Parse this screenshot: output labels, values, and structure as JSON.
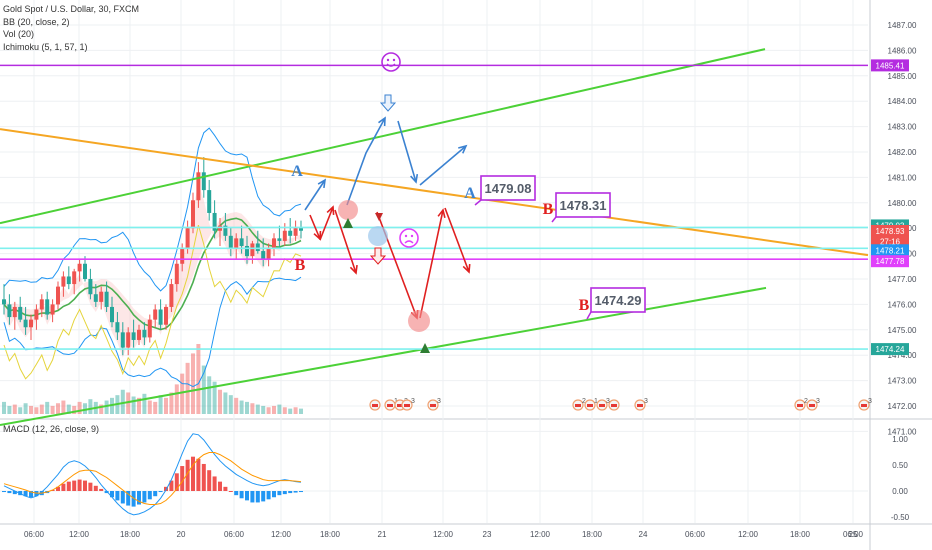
{
  "legend": {
    "symbol": "Gold Spot / U.S. Dollar, 30, FXCM",
    "bb": "BB (20, close, 2)",
    "vol": "Vol (20)",
    "ichimoku": "Ichimoku (5, 1, 57, 1)",
    "macd": "MACD (12, 26, close, 9)"
  },
  "colors": {
    "up": "#ef5350",
    "down": "#26a69a",
    "bb": "#2196f3",
    "ichimoku_base": "#4caf50",
    "ichimoku_lag": "#e5d43b",
    "trend_green": "#4cd137",
    "trend_orange": "#f5a623",
    "magenta": "#e040fb",
    "cyan": "#7ff0ee",
    "purple": "#b42ce0",
    "scenario_up": "#3b82d1",
    "scenario_down": "#e02020"
  },
  "chart_data": {
    "type": "line",
    "title": "Gold Spot / U.S. Dollar, 30, FXCM",
    "price_axis": {
      "ticks": [
        "1487.00",
        "1486.00",
        "1485.00",
        "1484.00",
        "1483.00",
        "1482.00",
        "1481.00",
        "1480.00",
        "1479.00",
        "1478.00",
        "1477.00",
        "1476.00",
        "1475.00",
        "1474.00",
        "1473.00",
        "1472.00",
        "1471.00"
      ]
    },
    "macd_axis": {
      "ticks": [
        "1.00",
        "0.50",
        "0.00",
        "-0.50"
      ]
    },
    "time_axis": {
      "ticks": [
        "06:00",
        "12:00",
        "18:00",
        "20",
        "06:00",
        "12:00",
        "18:00",
        "21",
        "12:00",
        "23",
        "12:00",
        "18:00",
        "24",
        "06:00",
        "12:00",
        "18:00",
        "25",
        "06:00"
      ]
    },
    "price_badges": [
      {
        "label": "1485.41",
        "value": 1485.41,
        "color": "#b42ce0"
      },
      {
        "label": "1479.03",
        "value": 1479.03,
        "color": "#26a69a"
      },
      {
        "label": "1478.93",
        "value": 1478.93,
        "color": "#ef5350"
      },
      {
        "label": "27:16",
        "value": 1478.6,
        "color": "#ef5350"
      },
      {
        "label": "1478.21",
        "value": 1478.21,
        "color": "#2196f3"
      },
      {
        "label": "1477.78",
        "value": 1477.78,
        "color": "#e040fb"
      },
      {
        "label": "1474.24",
        "value": 1474.24,
        "color": "#26a69a"
      }
    ],
    "horizontal_levels": [
      {
        "value": 1485.41,
        "color": "#b42ce0"
      },
      {
        "value": 1479.03,
        "color": "#7ff0ee"
      },
      {
        "value": 1478.21,
        "color": "#7ff0ee"
      },
      {
        "value": 1477.78,
        "color": "#e040fb"
      },
      {
        "value": 1474.24,
        "color": "#7ff0ee"
      }
    ],
    "callouts": [
      {
        "text": "1479.08",
        "value": 1479.08
      },
      {
        "text": "1478.31",
        "value": 1478.31
      },
      {
        "text": "1474.29",
        "value": 1474.29
      }
    ],
    "scenario_letters": [
      {
        "text": "A",
        "color": "#3b82d1"
      },
      {
        "text": "A",
        "color": "#3b82d1"
      },
      {
        "text": "B",
        "color": "#e02020"
      },
      {
        "text": "B",
        "color": "#e02020"
      },
      {
        "text": "B",
        "color": "#e02020"
      }
    ],
    "candles": [
      [
        1476.2,
        1476.8,
        1475.6,
        1476.0
      ],
      [
        1476.0,
        1476.4,
        1475.2,
        1475.5
      ],
      [
        1475.5,
        1476.1,
        1475.0,
        1475.9
      ],
      [
        1475.9,
        1476.3,
        1475.3,
        1475.4
      ],
      [
        1475.4,
        1475.9,
        1474.8,
        1475.1
      ],
      [
        1475.1,
        1475.6,
        1474.6,
        1475.4
      ],
      [
        1475.4,
        1476.0,
        1475.0,
        1475.8
      ],
      [
        1475.8,
        1476.4,
        1475.5,
        1476.2
      ],
      [
        1476.2,
        1476.5,
        1475.4,
        1475.6
      ],
      [
        1475.6,
        1476.2,
        1475.3,
        1476.0
      ],
      [
        1476.0,
        1476.9,
        1475.8,
        1476.7
      ],
      [
        1476.7,
        1477.3,
        1476.3,
        1477.1
      ],
      [
        1477.1,
        1477.5,
        1476.6,
        1476.8
      ],
      [
        1476.8,
        1477.4,
        1476.4,
        1477.3
      ],
      [
        1477.3,
        1477.8,
        1476.9,
        1477.6
      ],
      [
        1477.6,
        1477.9,
        1476.9,
        1477.0
      ],
      [
        1477.0,
        1477.4,
        1476.2,
        1476.4
      ],
      [
        1476.4,
        1476.8,
        1475.9,
        1476.1
      ],
      [
        1476.1,
        1476.7,
        1475.8,
        1476.5
      ],
      [
        1476.5,
        1476.9,
        1475.7,
        1475.9
      ],
      [
        1475.9,
        1476.3,
        1475.1,
        1475.3
      ],
      [
        1475.3,
        1475.7,
        1474.6,
        1474.9
      ],
      [
        1474.9,
        1475.3,
        1474.0,
        1474.3
      ],
      [
        1474.3,
        1475.1,
        1474.0,
        1474.9
      ],
      [
        1474.9,
        1475.4,
        1474.3,
        1474.6
      ],
      [
        1474.6,
        1475.2,
        1474.4,
        1475.0
      ],
      [
        1475.0,
        1475.3,
        1474.4,
        1474.7
      ],
      [
        1474.7,
        1475.6,
        1474.5,
        1475.4
      ],
      [
        1475.4,
        1476.0,
        1475.1,
        1475.8
      ],
      [
        1475.8,
        1476.2,
        1475.0,
        1475.2
      ],
      [
        1475.2,
        1476.0,
        1475.0,
        1475.9
      ],
      [
        1475.9,
        1477.0,
        1475.7,
        1476.8
      ],
      [
        1476.8,
        1477.8,
        1476.5,
        1477.6
      ],
      [
        1477.6,
        1478.4,
        1477.3,
        1478.2
      ],
      [
        1478.2,
        1479.3,
        1478.0,
        1479.0
      ],
      [
        1479.0,
        1480.4,
        1478.8,
        1480.1
      ],
      [
        1480.1,
        1481.6,
        1479.8,
        1481.2
      ],
      [
        1481.2,
        1481.8,
        1480.2,
        1480.5
      ],
      [
        1480.5,
        1480.9,
        1479.3,
        1479.6
      ],
      [
        1479.6,
        1480.1,
        1478.6,
        1478.9
      ],
      [
        1478.9,
        1479.4,
        1478.3,
        1479.1
      ],
      [
        1479.1,
        1479.6,
        1478.5,
        1478.7
      ],
      [
        1478.7,
        1479.0,
        1477.9,
        1478.2
      ],
      [
        1478.2,
        1478.8,
        1477.8,
        1478.6
      ],
      [
        1478.6,
        1479.1,
        1478.0,
        1478.3
      ],
      [
        1478.3,
        1478.7,
        1477.6,
        1477.9
      ],
      [
        1477.9,
        1478.5,
        1477.6,
        1478.4
      ],
      [
        1478.4,
        1478.9,
        1478.0,
        1478.1
      ],
      [
        1478.1,
        1478.6,
        1477.5,
        1477.8
      ],
      [
        1477.8,
        1478.4,
        1477.5,
        1478.2
      ],
      [
        1478.2,
        1478.8,
        1477.9,
        1478.6
      ],
      [
        1478.6,
        1479.1,
        1478.2,
        1478.5
      ],
      [
        1478.5,
        1479.2,
        1478.3,
        1478.9
      ],
      [
        1478.9,
        1479.4,
        1478.4,
        1478.7
      ],
      [
        1478.7,
        1479.3,
        1478.5,
        1479.0
      ],
      [
        1479.0,
        1479.3,
        1478.6,
        1478.9
      ]
    ],
    "volume": [
      9,
      6,
      7,
      5,
      8,
      6,
      5,
      7,
      9,
      6,
      8,
      10,
      7,
      6,
      9,
      8,
      11,
      9,
      7,
      10,
      12,
      14,
      18,
      16,
      13,
      12,
      15,
      10,
      9,
      14,
      12,
      16,
      22,
      30,
      38,
      45,
      52,
      36,
      28,
      24,
      18,
      16,
      14,
      12,
      10,
      9,
      8,
      7,
      6,
      5,
      6,
      7,
      5,
      4,
      5,
      4
    ],
    "macd_hist": [
      -0.02,
      -0.04,
      -0.06,
      -0.08,
      -0.1,
      -0.12,
      -0.1,
      -0.08,
      -0.04,
      0.02,
      0.08,
      0.14,
      0.18,
      0.2,
      0.22,
      0.2,
      0.16,
      0.1,
      0.04,
      -0.04,
      -0.12,
      -0.18,
      -0.24,
      -0.28,
      -0.3,
      -0.26,
      -0.22,
      -0.16,
      -0.1,
      -0.02,
      0.08,
      0.2,
      0.34,
      0.48,
      0.6,
      0.66,
      0.62,
      0.52,
      0.4,
      0.28,
      0.18,
      0.08,
      0.0,
      -0.08,
      -0.14,
      -0.18,
      -0.22,
      -0.22,
      -0.2,
      -0.16,
      -0.12,
      -0.08,
      -0.06,
      -0.04,
      -0.03,
      -0.02
    ],
    "macd_line": [
      0.1,
      0.05,
      0.0,
      -0.05,
      -0.1,
      -0.13,
      -0.1,
      -0.02,
      0.08,
      0.2,
      0.32,
      0.46,
      0.55,
      0.58,
      0.55,
      0.48,
      0.38,
      0.26,
      0.12,
      0.0,
      -0.12,
      -0.24,
      -0.34,
      -0.42,
      -0.46,
      -0.44,
      -0.4,
      -0.34,
      -0.26,
      -0.14,
      0.02,
      0.22,
      0.46,
      0.72,
      0.96,
      1.1,
      1.08,
      0.98,
      0.84,
      0.7,
      0.58,
      0.48,
      0.4,
      0.32,
      0.26,
      0.2,
      0.15,
      0.12,
      0.1,
      0.12,
      0.16,
      0.2,
      0.22,
      0.2,
      0.18,
      0.17
    ],
    "signal_line": [
      0.14,
      0.11,
      0.08,
      0.05,
      0.02,
      -0.02,
      -0.04,
      -0.04,
      -0.02,
      0.02,
      0.08,
      0.16,
      0.24,
      0.32,
      0.38,
      0.4,
      0.4,
      0.38,
      0.32,
      0.26,
      0.18,
      0.1,
      0.02,
      -0.06,
      -0.14,
      -0.2,
      -0.24,
      -0.26,
      -0.26,
      -0.24,
      -0.18,
      -0.08,
      0.04,
      0.18,
      0.34,
      0.5,
      0.62,
      0.7,
      0.74,
      0.74,
      0.7,
      0.64,
      0.58,
      0.5,
      0.42,
      0.36,
      0.3,
      0.26,
      0.22,
      0.2,
      0.2,
      0.2,
      0.2,
      0.2,
      0.19,
      0.18
    ]
  }
}
